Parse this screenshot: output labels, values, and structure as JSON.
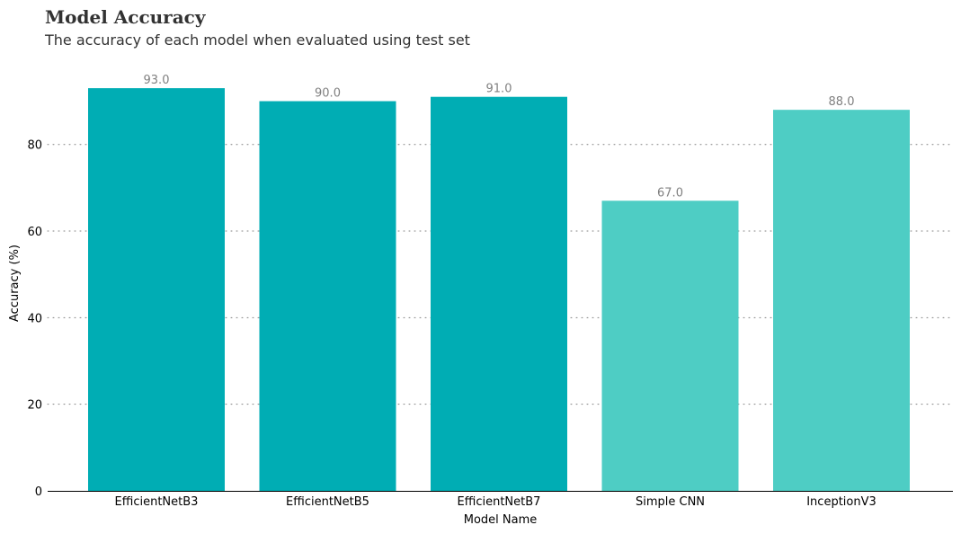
{
  "chart_data": {
    "type": "bar",
    "title": "Model Accuracy",
    "subtitle": "The accuracy of each model when evaluated using test set",
    "xlabel": "Model Name",
    "ylabel": "Accuracy (%)",
    "categories": [
      "EfficientNetB3",
      "EfficientNetB5",
      "EfficientNetB7",
      "Simple CNN",
      "InceptionV3"
    ],
    "values": [
      93.0,
      90.0,
      91.0,
      67.0,
      88.0
    ],
    "data_labels": [
      "93.0",
      "90.0",
      "91.0",
      "67.0",
      "88.0"
    ],
    "bar_colors": [
      "#00adb4",
      "#00adb4",
      "#00adb4",
      "#4ecdc4",
      "#4ecdc4"
    ],
    "ylim": [
      0,
      98
    ],
    "yticks": [
      0,
      20,
      40,
      60,
      80
    ],
    "ytick_labels": [
      "0",
      "20",
      "40",
      "60",
      "80"
    ],
    "grid": "y-dotted",
    "gridline_color": "#808080",
    "axis_color": "#000000"
  }
}
